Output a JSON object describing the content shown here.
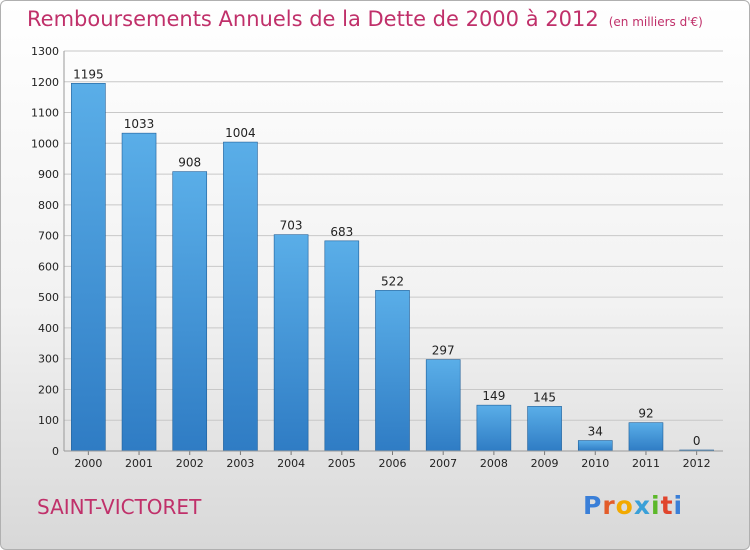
{
  "header": {
    "title": "Remboursements Annuels de la Dette de 2000 à 2012",
    "unit": "(en milliers d'€)"
  },
  "footer": {
    "place": "SAINT-VICTORET",
    "logo_letters": [
      "P",
      "r",
      "o",
      "x",
      "i",
      "t",
      "i"
    ],
    "logo_colors": [
      "#3a7fd8",
      "#e35c2a",
      "#f2a900",
      "#3aa0d8",
      "#5cb82a",
      "#e0452d",
      "#3a7fd8"
    ]
  },
  "colors": {
    "bar_top": "#5aaee8",
    "bar_bottom": "#2f7cc4",
    "bar_side": "#1e5e98",
    "grid": "#c8c8c8",
    "title": "#c0306a"
  },
  "chart_data": {
    "type": "bar",
    "categories": [
      "2000",
      "2001",
      "2002",
      "2003",
      "2004",
      "2005",
      "2006",
      "2007",
      "2008",
      "2009",
      "2010",
      "2011",
      "2012"
    ],
    "values": [
      1195,
      1033,
      908,
      1004,
      703,
      683,
      522,
      297,
      149,
      145,
      34,
      92,
      0
    ],
    "value_labels": [
      "1195",
      "1033",
      "908",
      "1004",
      "703",
      "683",
      "522",
      "297",
      "149",
      "145",
      "34",
      "92",
      "0"
    ],
    "ylim": [
      0,
      1300
    ],
    "yticks": [
      0,
      100,
      200,
      300,
      400,
      500,
      600,
      700,
      800,
      900,
      1000,
      1100,
      1200,
      1300
    ],
    "ytick_labels": [
      "0",
      "100",
      "200",
      "300",
      "400",
      "500",
      "600",
      "700",
      "800",
      "900",
      "1000",
      "1100",
      "1200",
      "1300"
    ],
    "grid": true,
    "legend": "none"
  }
}
